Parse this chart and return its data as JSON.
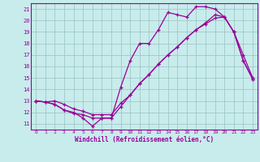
{
  "xlabel": "Windchill (Refroidissement éolien,°C)",
  "bg_color": "#c8ecec",
  "grid_color": "#a0c8c8",
  "line_color": "#990099",
  "xlim": [
    -0.5,
    23.5
  ],
  "ylim": [
    10.5,
    21.5
  ],
  "yticks": [
    11,
    12,
    13,
    14,
    15,
    16,
    17,
    18,
    19,
    20,
    21
  ],
  "xticks": [
    0,
    1,
    2,
    3,
    4,
    5,
    6,
    7,
    8,
    9,
    10,
    11,
    12,
    13,
    14,
    15,
    16,
    17,
    18,
    19,
    20,
    21,
    22,
    23
  ],
  "line1_x": [
    0,
    1,
    2,
    3,
    4,
    5,
    6,
    7,
    8,
    9,
    10,
    11,
    12,
    13,
    14,
    15,
    16,
    17,
    18,
    19,
    20,
    21,
    22,
    23
  ],
  "line1_y": [
    13.0,
    12.9,
    12.7,
    12.2,
    12.0,
    11.5,
    10.8,
    11.5,
    11.5,
    14.2,
    16.5,
    18.0,
    18.0,
    19.2,
    20.7,
    20.5,
    20.3,
    21.2,
    21.2,
    21.0,
    20.3,
    19.0,
    16.5,
    14.9
  ],
  "line2_x": [
    0,
    1,
    2,
    3,
    4,
    5,
    6,
    7,
    8,
    9,
    10,
    11,
    12,
    13,
    14,
    15,
    16,
    17,
    18,
    19,
    20,
    21,
    22,
    23
  ],
  "line2_y": [
    13.0,
    12.9,
    12.7,
    12.2,
    11.9,
    11.8,
    11.5,
    11.5,
    11.5,
    12.5,
    13.5,
    14.5,
    15.3,
    16.2,
    17.0,
    17.7,
    18.5,
    19.2,
    19.8,
    20.5,
    20.3,
    19.0,
    16.5,
    14.9
  ],
  "line3_x": [
    0,
    1,
    2,
    3,
    4,
    5,
    6,
    7,
    8,
    9,
    10,
    11,
    12,
    13,
    14,
    15,
    16,
    17,
    18,
    19,
    20,
    21,
    22,
    23
  ],
  "line3_y": [
    13.0,
    12.9,
    13.0,
    12.7,
    12.3,
    12.1,
    11.8,
    11.8,
    11.8,
    12.8,
    13.5,
    14.5,
    15.3,
    16.2,
    17.0,
    17.7,
    18.5,
    19.2,
    19.7,
    20.2,
    20.3,
    19.0,
    17.0,
    15.0
  ]
}
